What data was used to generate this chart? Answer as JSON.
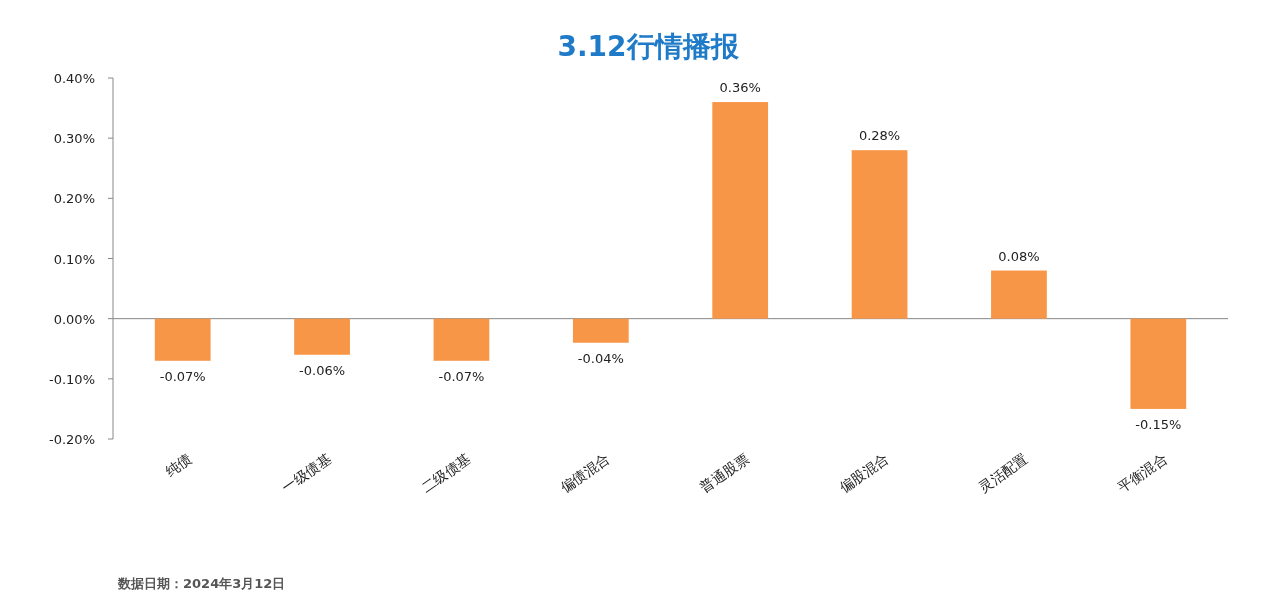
{
  "chart_data": {
    "type": "bar",
    "title": "3.12行情播报",
    "categories": [
      "纯债",
      "一级债基",
      "二级债基",
      "偏债混合",
      "普通股票",
      "偏股混合",
      "灵活配置",
      "平衡混合"
    ],
    "values": [
      -0.07,
      -0.06,
      -0.07,
      -0.04,
      0.36,
      0.28,
      0.08,
      -0.15
    ],
    "value_labels": [
      "-0.07%",
      "-0.06%",
      "-0.07%",
      "-0.04%",
      "0.36%",
      "0.28%",
      "0.08%",
      "-0.15%"
    ],
    "color": "#f79646",
    "ylim": [
      -0.2,
      0.4
    ],
    "yticks": [
      {
        "value": -0.2,
        "label": "-0.20%"
      },
      {
        "value": -0.1,
        "label": "-0.10%"
      },
      {
        "value": 0,
        "label": "0.00%"
      },
      {
        "value": 0.1,
        "label": "0.10%"
      },
      {
        "value": 0.2,
        "label": "0.20%"
      },
      {
        "value": 0.3,
        "label": "0.30%"
      },
      {
        "value": 0.4,
        "label": "0.40%"
      }
    ],
    "annotations": [
      "数据日期：2024年3月12日"
    ]
  }
}
